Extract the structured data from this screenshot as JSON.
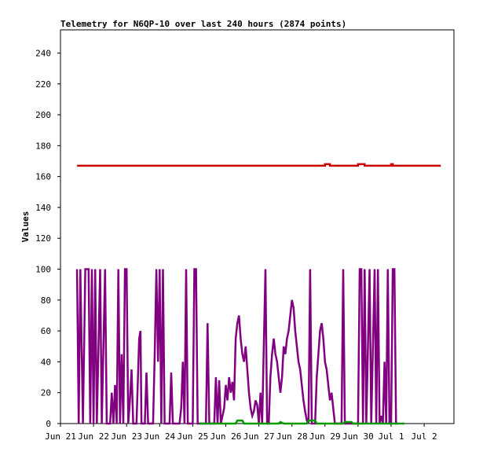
{
  "chart_data": {
    "type": "line",
    "title": "Telemetry for N6QP-10 over last 240 hours (2874 points)",
    "xlabel": "",
    "ylabel": "Values",
    "ylim": [
      0,
      255
    ],
    "yticks": [
      0,
      20,
      40,
      60,
      80,
      100,
      120,
      140,
      160,
      180,
      200,
      220,
      240
    ],
    "xticks": [
      "Jun 21",
      "Jun 22",
      "Jun 23",
      "Jun 24",
      "Jun 25",
      "Jun 26",
      "Jun 27",
      "Jun 28",
      "Jun 29",
      "Jun 30",
      "Jul 1",
      "Jul 2"
    ],
    "xlim_days": [
      0,
      11.9
    ],
    "grid": false,
    "legend": "none",
    "series": [
      {
        "color": "#cc0000",
        "points": [
          [
            0.5,
            167
          ],
          [
            8.0,
            167
          ],
          [
            8.0,
            168
          ],
          [
            8.15,
            168
          ],
          [
            8.15,
            167
          ],
          [
            9.0,
            167
          ],
          [
            9.0,
            168
          ],
          [
            9.2,
            168
          ],
          [
            9.2,
            167
          ],
          [
            10.0,
            167
          ],
          [
            10.0,
            168
          ],
          [
            10.05,
            168
          ],
          [
            10.05,
            167
          ],
          [
            11.5,
            167
          ]
        ]
      },
      {
        "color": "#800080",
        "points": [
          [
            0.5,
            100
          ],
          [
            0.55,
            0
          ],
          [
            0.6,
            100
          ],
          [
            0.68,
            0
          ],
          [
            0.75,
            100
          ],
          [
            0.85,
            100
          ],
          [
            0.9,
            0
          ],
          [
            0.95,
            100
          ],
          [
            1.0,
            0
          ],
          [
            1.05,
            100
          ],
          [
            1.1,
            0
          ],
          [
            1.2,
            100
          ],
          [
            1.25,
            0
          ],
          [
            1.35,
            100
          ],
          [
            1.4,
            0
          ],
          [
            1.5,
            0
          ],
          [
            1.55,
            20
          ],
          [
            1.6,
            0
          ],
          [
            1.65,
            25
          ],
          [
            1.7,
            0
          ],
          [
            1.75,
            100
          ],
          [
            1.8,
            0
          ],
          [
            1.85,
            45
          ],
          [
            1.9,
            0
          ],
          [
            1.95,
            100
          ],
          [
            2.0,
            100
          ],
          [
            2.05,
            0
          ],
          [
            2.1,
            15
          ],
          [
            2.15,
            35
          ],
          [
            2.2,
            0
          ],
          [
            2.3,
            0
          ],
          [
            2.38,
            55
          ],
          [
            2.42,
            60
          ],
          [
            2.45,
            0
          ],
          [
            2.55,
            0
          ],
          [
            2.6,
            33
          ],
          [
            2.65,
            0
          ],
          [
            2.8,
            0
          ],
          [
            2.85,
            45
          ],
          [
            2.9,
            100
          ],
          [
            2.95,
            40
          ],
          [
            3.0,
            100
          ],
          [
            3.05,
            0
          ],
          [
            3.1,
            100
          ],
          [
            3.15,
            0
          ],
          [
            3.3,
            0
          ],
          [
            3.35,
            33
          ],
          [
            3.4,
            0
          ],
          [
            3.6,
            0
          ],
          [
            3.65,
            10
          ],
          [
            3.7,
            40
          ],
          [
            3.75,
            0
          ],
          [
            3.8,
            100
          ],
          [
            3.85,
            0
          ],
          [
            4.0,
            0
          ],
          [
            4.05,
            100
          ],
          [
            4.1,
            100
          ],
          [
            4.15,
            0
          ],
          [
            4.4,
            0
          ],
          [
            4.45,
            65
          ],
          [
            4.5,
            0
          ],
          [
            4.65,
            0
          ],
          [
            4.7,
            30
          ],
          [
            4.75,
            0
          ],
          [
            4.8,
            28
          ],
          [
            4.85,
            0
          ],
          [
            4.95,
            10
          ],
          [
            5.0,
            25
          ],
          [
            5.05,
            15
          ],
          [
            5.1,
            30
          ],
          [
            5.15,
            20
          ],
          [
            5.2,
            27
          ],
          [
            5.25,
            15
          ],
          [
            5.3,
            55
          ],
          [
            5.35,
            65
          ],
          [
            5.4,
            70
          ],
          [
            5.45,
            55
          ],
          [
            5.5,
            45
          ],
          [
            5.55,
            40
          ],
          [
            5.6,
            50
          ],
          [
            5.65,
            35
          ],
          [
            5.7,
            20
          ],
          [
            5.75,
            10
          ],
          [
            5.8,
            5
          ],
          [
            5.85,
            8
          ],
          [
            5.9,
            15
          ],
          [
            5.95,
            12
          ],
          [
            6.0,
            0
          ],
          [
            6.05,
            20
          ],
          [
            6.1,
            0
          ],
          [
            6.2,
            100
          ],
          [
            6.25,
            0
          ],
          [
            6.3,
            0
          ],
          [
            6.35,
            30
          ],
          [
            6.4,
            45
          ],
          [
            6.45,
            55
          ],
          [
            6.5,
            45
          ],
          [
            6.55,
            40
          ],
          [
            6.6,
            30
          ],
          [
            6.65,
            20
          ],
          [
            6.7,
            30
          ],
          [
            6.75,
            50
          ],
          [
            6.8,
            45
          ],
          [
            6.85,
            55
          ],
          [
            6.9,
            60
          ],
          [
            6.95,
            70
          ],
          [
            7.0,
            80
          ],
          [
            7.05,
            75
          ],
          [
            7.1,
            60
          ],
          [
            7.15,
            50
          ],
          [
            7.2,
            40
          ],
          [
            7.25,
            35
          ],
          [
            7.3,
            25
          ],
          [
            7.35,
            15
          ],
          [
            7.4,
            8
          ],
          [
            7.45,
            2
          ],
          [
            7.5,
            0
          ],
          [
            7.55,
            100
          ],
          [
            7.6,
            0
          ],
          [
            7.7,
            0
          ],
          [
            7.75,
            30
          ],
          [
            7.8,
            45
          ],
          [
            7.85,
            60
          ],
          [
            7.9,
            65
          ],
          [
            7.95,
            55
          ],
          [
            8.0,
            40
          ],
          [
            8.05,
            35
          ],
          [
            8.1,
            25
          ],
          [
            8.15,
            15
          ],
          [
            8.2,
            20
          ],
          [
            8.25,
            10
          ],
          [
            8.3,
            0
          ],
          [
            8.5,
            0
          ],
          [
            8.55,
            100
          ],
          [
            8.6,
            0
          ],
          [
            9.0,
            0
          ],
          [
            9.05,
            100
          ],
          [
            9.1,
            100
          ],
          [
            9.15,
            0
          ],
          [
            9.2,
            100
          ],
          [
            9.25,
            0
          ],
          [
            9.35,
            100
          ],
          [
            9.4,
            0
          ],
          [
            9.5,
            100
          ],
          [
            9.55,
            0
          ],
          [
            9.6,
            100
          ],
          [
            9.65,
            0
          ],
          [
            9.7,
            5
          ],
          [
            9.75,
            0
          ],
          [
            9.8,
            40
          ],
          [
            9.85,
            0
          ],
          [
            9.9,
            100
          ],
          [
            9.95,
            0
          ],
          [
            10.0,
            0
          ],
          [
            10.05,
            100
          ],
          [
            10.1,
            100
          ],
          [
            10.15,
            0
          ],
          [
            10.2,
            0
          ]
        ]
      },
      {
        "color": "#009900",
        "points": [
          [
            4.2,
            0
          ],
          [
            5.3,
            0
          ],
          [
            5.35,
            2
          ],
          [
            5.5,
            2
          ],
          [
            5.55,
            0
          ],
          [
            6.6,
            0
          ],
          [
            6.65,
            1
          ],
          [
            6.75,
            0
          ],
          [
            7.45,
            0
          ],
          [
            7.5,
            2
          ],
          [
            7.7,
            2
          ],
          [
            7.75,
            0
          ],
          [
            8.55,
            0
          ],
          [
            8.6,
            1
          ],
          [
            8.8,
            1
          ],
          [
            8.85,
            0
          ],
          [
            10.4,
            0
          ]
        ]
      }
    ]
  }
}
